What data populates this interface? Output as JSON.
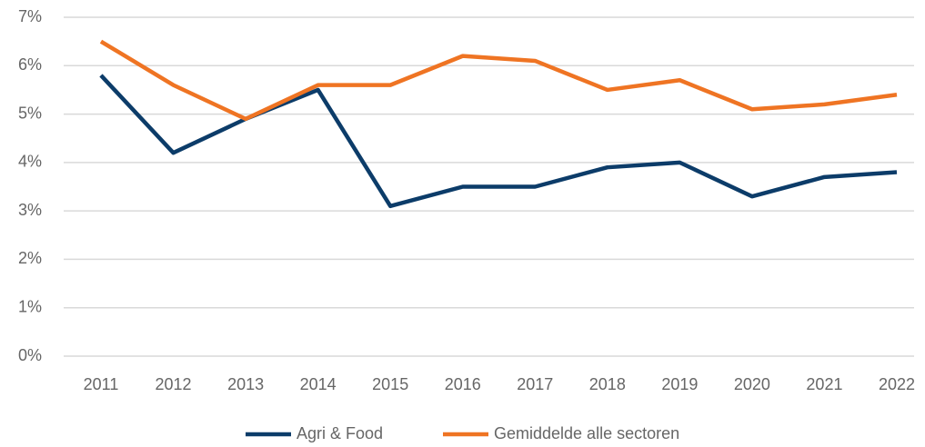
{
  "chart_data": {
    "type": "line",
    "categories": [
      "2011",
      "2012",
      "2013",
      "2014",
      "2015",
      "2016",
      "2017",
      "2018",
      "2019",
      "2020",
      "2021",
      "2022"
    ],
    "series": [
      {
        "name": "Agri & Food",
        "color": "#0c3c69",
        "values": [
          5.8,
          4.2,
          4.9,
          5.5,
          3.1,
          3.5,
          3.5,
          3.9,
          4.0,
          3.3,
          3.7,
          3.8
        ]
      },
      {
        "name": "Gemiddelde alle sectoren",
        "color": "#ef7423",
        "values": [
          6.5,
          5.6,
          4.9,
          5.6,
          5.6,
          6.2,
          6.1,
          5.5,
          5.7,
          5.1,
          5.2,
          5.4
        ]
      }
    ],
    "ylim": [
      0,
      7
    ],
    "yticks": [
      {
        "value": 0,
        "label": "0%"
      },
      {
        "value": 1,
        "label": "1%"
      },
      {
        "value": 2,
        "label": "2%"
      },
      {
        "value": 3,
        "label": "3%"
      },
      {
        "value": 4,
        "label": "4%"
      },
      {
        "value": 5,
        "label": "5%"
      },
      {
        "value": 6,
        "label": "6%"
      },
      {
        "value": 7,
        "label": "7%"
      }
    ],
    "grid": true,
    "legend": "bottom"
  }
}
